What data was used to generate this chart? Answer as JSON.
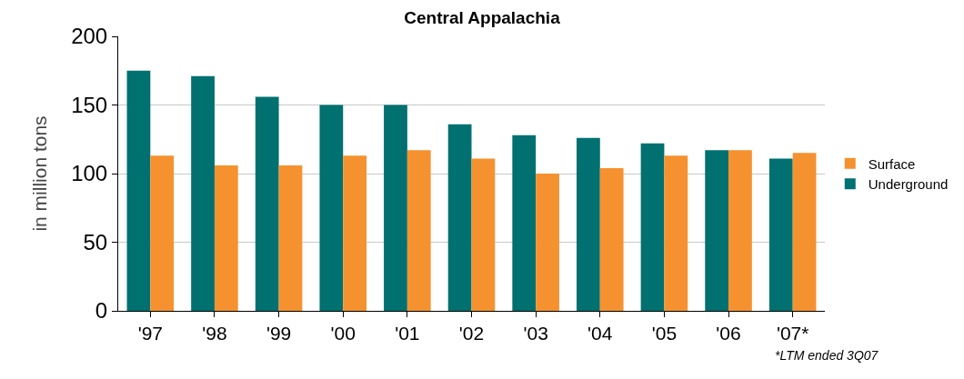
{
  "chart_data": {
    "type": "bar",
    "title": "Central Appalachia",
    "ylabel": "in million tons",
    "categories": [
      "'97",
      "'98",
      "'99",
      "'00",
      "'01",
      "'02",
      "'03",
      "'04",
      "'05",
      "'06",
      "'07*"
    ],
    "series": [
      {
        "name": "Underground",
        "color": "#007070",
        "values": [
          175,
          171,
          156,
          150,
          150,
          136,
          128,
          126,
          122,
          117,
          111
        ]
      },
      {
        "name": "Surface",
        "color": "#f5922f",
        "values": [
          113,
          106,
          106,
          113,
          117,
          111,
          100,
          104,
          113,
          117,
          115
        ]
      }
    ],
    "ylim": [
      0,
      200
    ],
    "yticks": [
      0,
      50,
      100,
      150,
      200
    ],
    "grid": "y",
    "legend": "right",
    "annotations": [
      "*LTM ended 3Q07"
    ]
  }
}
